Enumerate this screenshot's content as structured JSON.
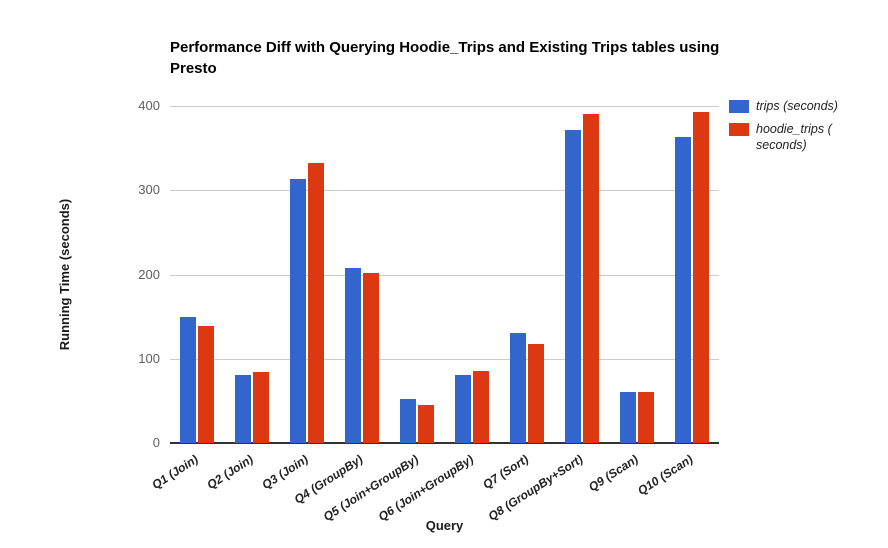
{
  "chart_data": {
    "type": "bar",
    "title": "Performance Diff with Querying Hoodie_Trips and Existing Trips tables using Presto",
    "xlabel": "Query",
    "ylabel": "Running Time (seconds)",
    "ylim": [
      0,
      400
    ],
    "yticks": [
      0,
      100,
      200,
      300,
      400
    ],
    "grid": true,
    "legend_position": "right",
    "categories": [
      "Q1 (Join)",
      "Q2 (Join)",
      "Q3 (Join)",
      "Q4 (GroupBy)",
      "Q5 (Join+GroupBy)",
      "Q6 (Join+GroupBy)",
      "Q7 (Sort)",
      "Q8 (GroupBy+Sort)",
      "Q9 (Scan)",
      "Q10 (Scan)"
    ],
    "series": [
      {
        "name": "trips (seconds)",
        "color": "#3366CC",
        "values": [
          150,
          81,
          313,
          208,
          52,
          81,
          131,
          371,
          61,
          363
        ]
      },
      {
        "name": "hoodie_trips ( seconds)",
        "color": "#DC3912",
        "values": [
          139,
          84,
          332,
          202,
          45,
          85,
          117,
          390,
          60,
          393
        ]
      }
    ],
    "colors": {
      "gridline": "#cccccc",
      "baseline": "#333333",
      "tick_text": "#5f5f5f"
    }
  }
}
